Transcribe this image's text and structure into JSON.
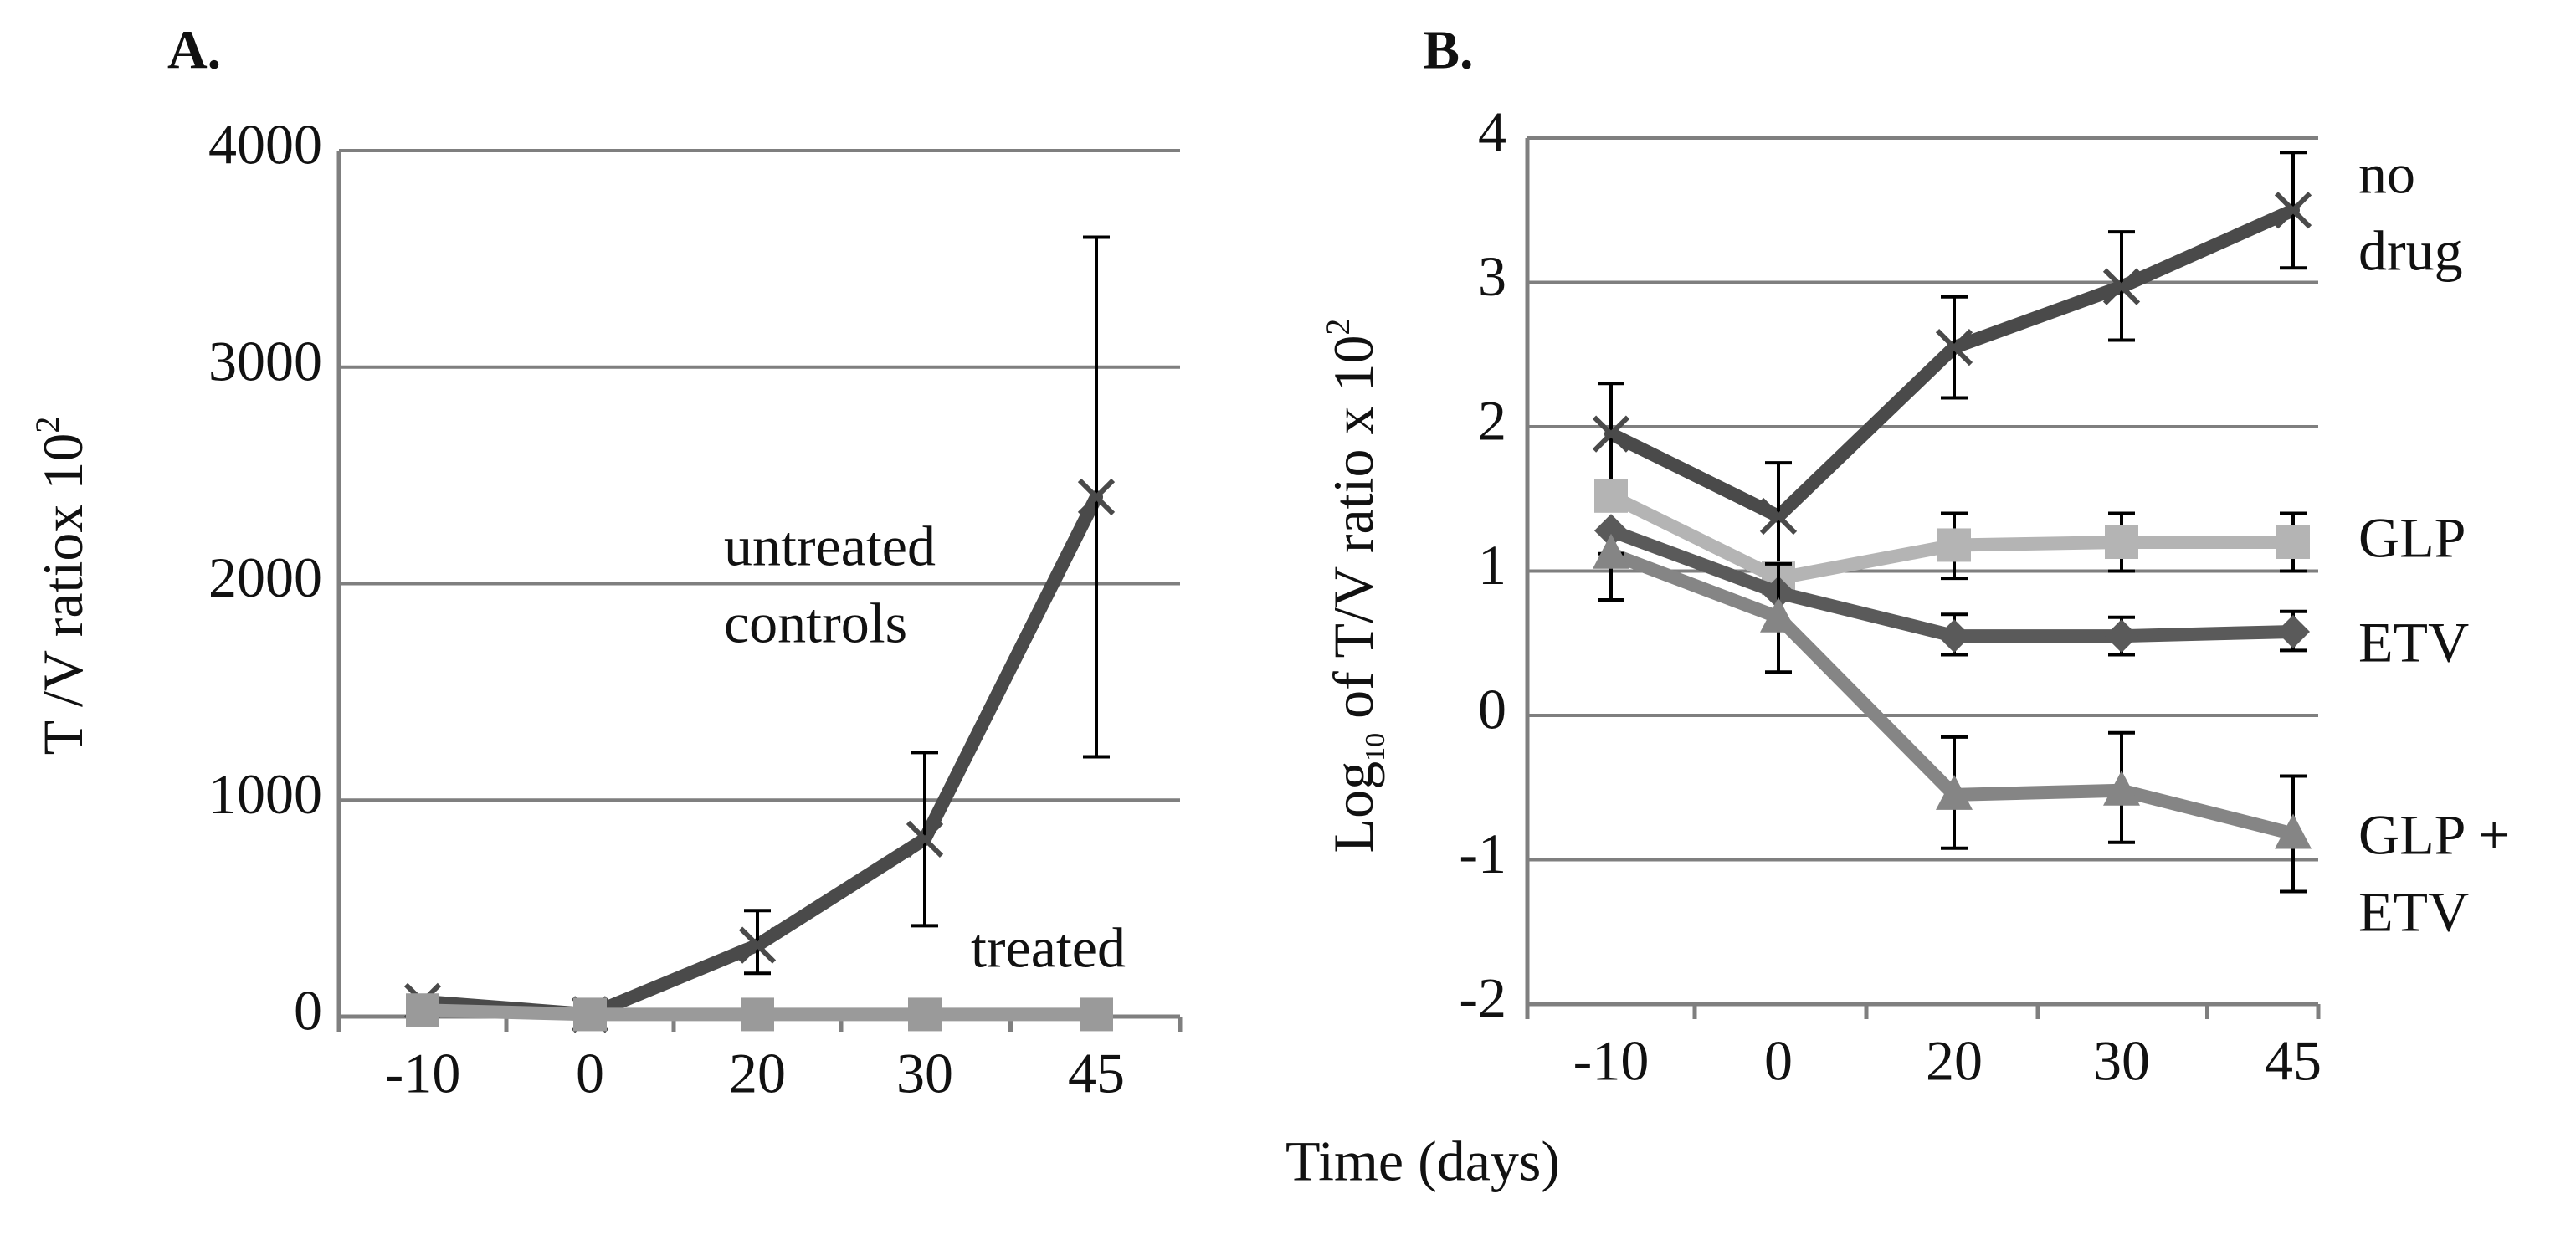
{
  "chart_data": [
    {
      "type": "line",
      "panel_label": "A.",
      "title": "",
      "xlabel": "",
      "ylabel": {
        "main": "T /V ratiox 10",
        "sup": "2"
      },
      "categories": [
        "-10",
        "0",
        "20",
        "30",
        "45"
      ],
      "ylim": [
        0,
        4000
      ],
      "yticks": [
        0,
        1000,
        2000,
        3000,
        4000
      ],
      "grid": true,
      "series": [
        {
          "name": "untreated controls",
          "label_lines": [
            "untreated",
            "controls"
          ],
          "color": "#4a4a4a",
          "marker": "x",
          "values": [
            70,
            10,
            330,
            820,
            2400
          ],
          "err_low": [
            70,
            10,
            200,
            420,
            1200
          ],
          "err_high": [
            70,
            10,
            490,
            1220,
            3600
          ]
        },
        {
          "name": "treated",
          "label_lines": [
            "treated"
          ],
          "color": "#9a9a9a",
          "marker": "square",
          "values": [
            30,
            10,
            10,
            10,
            10
          ],
          "err_low": null,
          "err_high": null
        }
      ]
    },
    {
      "type": "line",
      "panel_label": "B.",
      "title": "",
      "xlabel": "Time (days)",
      "ylabel": {
        "pre": "Log",
        "sub": "10",
        "main": " of T/V ratio x 10",
        "sup": "2"
      },
      "categories": [
        "-10",
        "0",
        "20",
        "30",
        "45"
      ],
      "ylim": [
        -2,
        4
      ],
      "yticks": [
        -2,
        -1,
        0,
        1,
        2,
        3,
        4
      ],
      "grid": true,
      "series": [
        {
          "name": "no drug",
          "label_lines": [
            "no",
            "drug"
          ],
          "color": "#4a4a4a",
          "marker": "x",
          "values": [
            1.95,
            1.38,
            2.55,
            2.97,
            3.5
          ],
          "err_low": [
            1.6,
            1.0,
            2.2,
            2.6,
            3.1
          ],
          "err_high": [
            2.3,
            1.75,
            2.9,
            3.35,
            3.9
          ]
        },
        {
          "name": "GLP",
          "label_lines": [
            "GLP"
          ],
          "color": "#b4b4b4",
          "marker": "square",
          "values": [
            1.52,
            0.95,
            1.18,
            1.2,
            1.2
          ],
          "err_low": [
            1.52,
            0.95,
            0.95,
            1.0,
            1.0
          ],
          "err_high": [
            1.52,
            0.95,
            1.4,
            1.4,
            1.4
          ]
        },
        {
          "name": "ETV",
          "label_lines": [
            "ETV"
          ],
          "color": "#5a5a5a",
          "marker": "diamond",
          "values": [
            1.28,
            0.85,
            0.55,
            0.55,
            0.58
          ],
          "err_low": [
            1.28,
            0.85,
            0.42,
            0.42,
            0.45
          ],
          "err_high": [
            1.28,
            0.85,
            0.7,
            0.68,
            0.72
          ]
        },
        {
          "name": "GLP + ETV",
          "label_lines": [
            "GLP +",
            "ETV"
          ],
          "color": "#858585",
          "marker": "triangle",
          "values": [
            1.12,
            0.68,
            -0.55,
            -0.52,
            -0.82
          ],
          "err_low": [
            0.8,
            0.3,
            -0.92,
            -0.88,
            -1.22
          ],
          "err_high": [
            1.12,
            1.05,
            -0.15,
            -0.12,
            -0.42
          ]
        }
      ]
    }
  ]
}
